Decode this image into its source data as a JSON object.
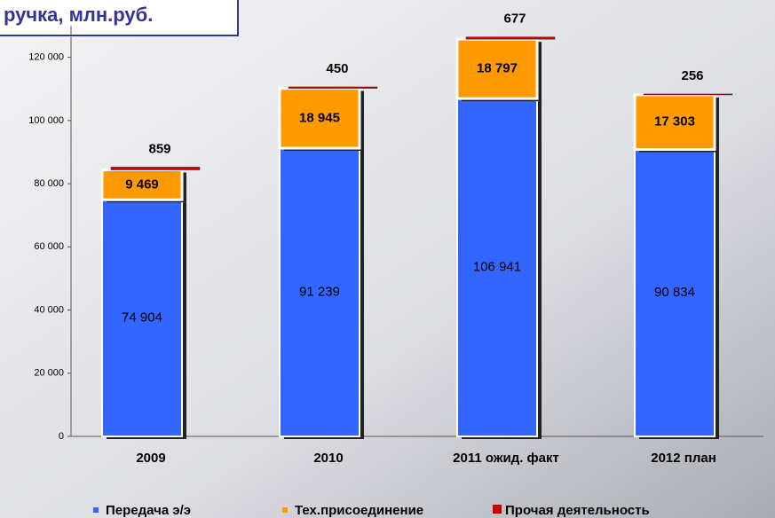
{
  "chart_data": {
    "type": "stacked_bar",
    "title": "ручка, млн.руб.",
    "categories": [
      "2009",
      "2010",
      "2011 ожид. факт",
      "2012 план"
    ],
    "series": [
      {
        "name": "Передача э/э",
        "color": "#3366ff",
        "values": [
          74904,
          91239,
          106941,
          90834
        ],
        "value_labels": [
          "74 904",
          "91 239",
          "106 941",
          "90 834"
        ]
      },
      {
        "name": "Тех.присоединение",
        "color": "#ff9900",
        "values": [
          9469,
          18945,
          18797,
          17303
        ],
        "value_labels": [
          "9 469",
          "18 945",
          "18 797",
          "17 303"
        ]
      },
      {
        "name": "Прочая деятельность",
        "color": "#cc0000",
        "values": [
          859,
          450,
          677,
          256
        ],
        "value_labels": [
          "859",
          "450",
          "677",
          "256"
        ]
      }
    ],
    "ylim": [
      0,
      130000
    ],
    "yticks": [
      0,
      {
        "value": 20000,
        "label": "20 000"
      },
      {
        "value": 40000,
        "label": "40 000"
      },
      {
        "value": 60000,
        "label": "60 000"
      },
      {
        "value": 80000,
        "label": "80 000"
      },
      {
        "value": 100000,
        "label": "100 000"
      },
      {
        "value": 120000,
        "label": "120 000"
      }
    ]
  }
}
